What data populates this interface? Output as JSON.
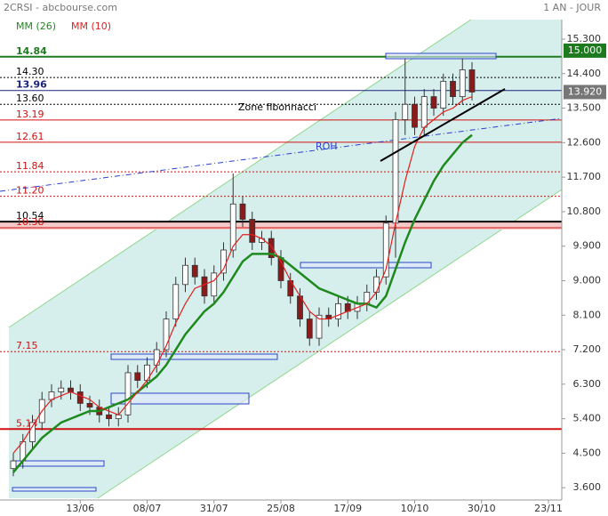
{
  "chart_data": {
    "type": "candlestick",
    "title": "2CRSI - abcbourse.com",
    "subtitle": "1 AN - JOUR",
    "annotations": [
      "Zone fibonnacci",
      "ROH"
    ],
    "categories": [
      null,
      null,
      null,
      null,
      null,
      null,
      null,
      "13/06",
      null,
      null,
      null,
      null,
      null,
      null,
      "08/07",
      null,
      null,
      null,
      null,
      null,
      null,
      "31/07",
      null,
      null,
      null,
      null,
      null,
      null,
      "25/08",
      null,
      null,
      null,
      null,
      null,
      null,
      "17/09",
      null,
      null,
      null,
      null,
      null,
      null,
      "10/10",
      null,
      null,
      null,
      null,
      null,
      null,
      "30/10",
      null,
      null,
      null,
      null,
      null,
      null,
      "23/11"
    ],
    "open": [
      4.1,
      4.3,
      4.8,
      5.3,
      5.9,
      6.1,
      6.2,
      6.1,
      5.8,
      5.7,
      5.5,
      5.4,
      5.5,
      6.6,
      6.4,
      6.8,
      7.2,
      8.0,
      8.9,
      9.4,
      9.1,
      8.6,
      9.2,
      9.8,
      11.0,
      10.6,
      10.0,
      10.1,
      9.6,
      9.0,
      8.6,
      8.0,
      7.5,
      8.1,
      8.0,
      8.4,
      8.2,
      8.4,
      8.7,
      9.1,
      10.5,
      13.2,
      13.6,
      13.0,
      13.8,
      13.5,
      14.2,
      13.8,
      14.5,
      null,
      null,
      null,
      null,
      null,
      null,
      null,
      null
    ],
    "high": [
      4.5,
      5.0,
      5.5,
      6.1,
      6.3,
      6.4,
      6.4,
      6.3,
      6.0,
      5.9,
      5.7,
      5.7,
      6.8,
      6.8,
      7.0,
      7.4,
      8.2,
      9.1,
      9.6,
      9.6,
      9.3,
      9.4,
      10.0,
      11.8,
      11.2,
      10.8,
      10.3,
      10.3,
      9.8,
      9.2,
      8.8,
      8.2,
      8.3,
      8.3,
      8.6,
      8.6,
      8.6,
      8.9,
      9.3,
      10.7,
      13.4,
      14.8,
      13.8,
      14.0,
      14.0,
      14.4,
      14.4,
      14.8,
      14.7,
      null,
      null,
      null,
      null,
      null,
      null,
      null,
      null
    ],
    "low": [
      3.9,
      4.1,
      4.6,
      5.1,
      5.7,
      5.9,
      5.9,
      5.6,
      5.5,
      5.3,
      5.2,
      5.2,
      5.3,
      6.2,
      6.2,
      6.6,
      7.0,
      7.8,
      8.7,
      8.9,
      8.4,
      8.4,
      9.0,
      9.6,
      10.4,
      9.8,
      9.8,
      9.4,
      8.8,
      8.4,
      7.8,
      7.3,
      7.3,
      7.8,
      7.8,
      8.0,
      8.0,
      8.2,
      8.5,
      8.9,
      9.6,
      12.8,
      12.8,
      12.8,
      13.3,
      13.3,
      13.6,
      13.6,
      13.7,
      null,
      null,
      null,
      null,
      null,
      null,
      null,
      null
    ],
    "close": [
      4.3,
      4.8,
      5.3,
      5.9,
      6.1,
      6.2,
      6.1,
      5.8,
      5.7,
      5.5,
      5.4,
      5.5,
      6.6,
      6.4,
      6.8,
      7.2,
      8.0,
      8.9,
      9.4,
      9.1,
      8.6,
      9.2,
      9.8,
      11.0,
      10.6,
      10.0,
      10.1,
      9.6,
      9.0,
      8.6,
      8.0,
      7.5,
      8.1,
      8.0,
      8.4,
      8.2,
      8.4,
      8.7,
      9.1,
      10.5,
      13.2,
      13.6,
      13.0,
      13.8,
      13.5,
      14.2,
      13.8,
      14.5,
      13.92,
      null,
      null,
      null,
      null,
      null,
      null,
      null,
      null
    ],
    "up_color": "#ffffff",
    "down_color": "#8b1a1a",
    "series": [
      {
        "name": "MM (26)",
        "color": "#1e8a1e",
        "values": [
          4.0,
          4.3,
          4.6,
          4.9,
          5.1,
          5.3,
          5.4,
          5.5,
          5.6,
          5.6,
          5.7,
          5.8,
          5.9,
          6.1,
          6.3,
          6.5,
          6.8,
          7.2,
          7.6,
          7.9,
          8.2,
          8.4,
          8.7,
          9.1,
          9.5,
          9.7,
          9.7,
          9.7,
          9.6,
          9.4,
          9.2,
          9.0,
          8.8,
          8.7,
          8.6,
          8.5,
          8.4,
          8.4,
          8.3,
          8.6,
          9.3,
          10.0,
          10.6,
          11.1,
          11.6,
          12.0,
          12.3,
          12.6,
          12.8,
          null,
          null,
          null,
          null,
          null,
          null,
          null,
          null
        ]
      },
      {
        "name": "MM (10)",
        "color": "#e02020",
        "values": [
          4.5,
          4.8,
          5.2,
          5.6,
          5.9,
          6.0,
          6.1,
          6.0,
          5.9,
          5.7,
          5.6,
          5.5,
          5.8,
          6.1,
          6.4,
          6.8,
          7.3,
          7.9,
          8.4,
          8.8,
          8.9,
          9.0,
          9.3,
          9.9,
          10.2,
          10.2,
          10.1,
          9.9,
          9.5,
          9.0,
          8.6,
          8.2,
          8.0,
          8.0,
          8.1,
          8.2,
          8.3,
          8.4,
          8.7,
          9.3,
          10.5,
          11.6,
          12.5,
          13.0,
          13.2,
          13.4,
          13.5,
          13.7,
          13.8,
          null,
          null,
          null,
          null,
          null,
          null,
          null,
          null
        ]
      }
    ],
    "ylim": [
      3.28,
      15.81
    ],
    "yticks": [
      {
        "value": 15.3,
        "label": "15.300"
      },
      {
        "value": 14.4,
        "label": "14.400"
      },
      {
        "value": 13.5,
        "label": "13.500"
      },
      {
        "value": 12.6,
        "label": "12.600"
      },
      {
        "value": 11.7,
        "label": "11.700"
      },
      {
        "value": 10.8,
        "label": "10.800"
      },
      {
        "value": 9.9,
        "label": "9.900"
      },
      {
        "value": 9,
        "label": "9.000"
      },
      {
        "value": 8.1,
        "label": "8.100"
      },
      {
        "value": 7.2,
        "label": "7.200"
      },
      {
        "value": 6.3,
        "label": "6.300"
      },
      {
        "value": 5.4,
        "label": "5.400"
      },
      {
        "value": 4.5,
        "label": "4.500"
      },
      {
        "value": 3.6,
        "label": "3.600"
      }
    ],
    "levels": [
      {
        "value": 14.84,
        "label": "14.84",
        "color": "#1e7a1e",
        "dash": "none",
        "width": 2
      },
      {
        "value": 14.3,
        "label": "14.30",
        "color": "#000000",
        "dash": "2,2",
        "width": 1
      },
      {
        "value": 13.96,
        "label": "13.96",
        "color": "#1a237e",
        "dash": "none",
        "width": 1
      },
      {
        "value": 13.6,
        "label": "13.60",
        "color": "#000000",
        "dash": "2,2",
        "width": 1
      },
      {
        "value": 13.19,
        "label": "13.19",
        "color": "#d01010",
        "dash": "none",
        "width": 1
      },
      {
        "value": 12.61,
        "label": "12.61",
        "color": "#d01010",
        "dash": "none",
        "width": 1
      },
      {
        "value": 11.84,
        "label": "11.84",
        "color": "#d01010",
        "dash": "2,2",
        "width": 1
      },
      {
        "value": 11.2,
        "label": "11.20",
        "color": "#d01010",
        "dash": "2,2",
        "width": 1
      },
      {
        "value": 10.54,
        "label": "10.54",
        "color": "#000000",
        "dash": "none",
        "width": 2
      },
      {
        "value": 10.38,
        "label": "10.38",
        "color": "#d01010",
        "dash": "none",
        "width": 1
      },
      {
        "value": 7.15,
        "label": "7.15",
        "color": "#d01010",
        "dash": "2,2",
        "width": 1
      },
      {
        "value": 5.13,
        "label": "5.13",
        "color": "#d01010",
        "dash": "none",
        "width": 2
      }
    ],
    "price_tags": [
      {
        "value": 15,
        "label": "15.000",
        "color": "#1e7a1e"
      },
      {
        "value": 13.92,
        "label": "13.920",
        "color": "#777777"
      }
    ]
  }
}
